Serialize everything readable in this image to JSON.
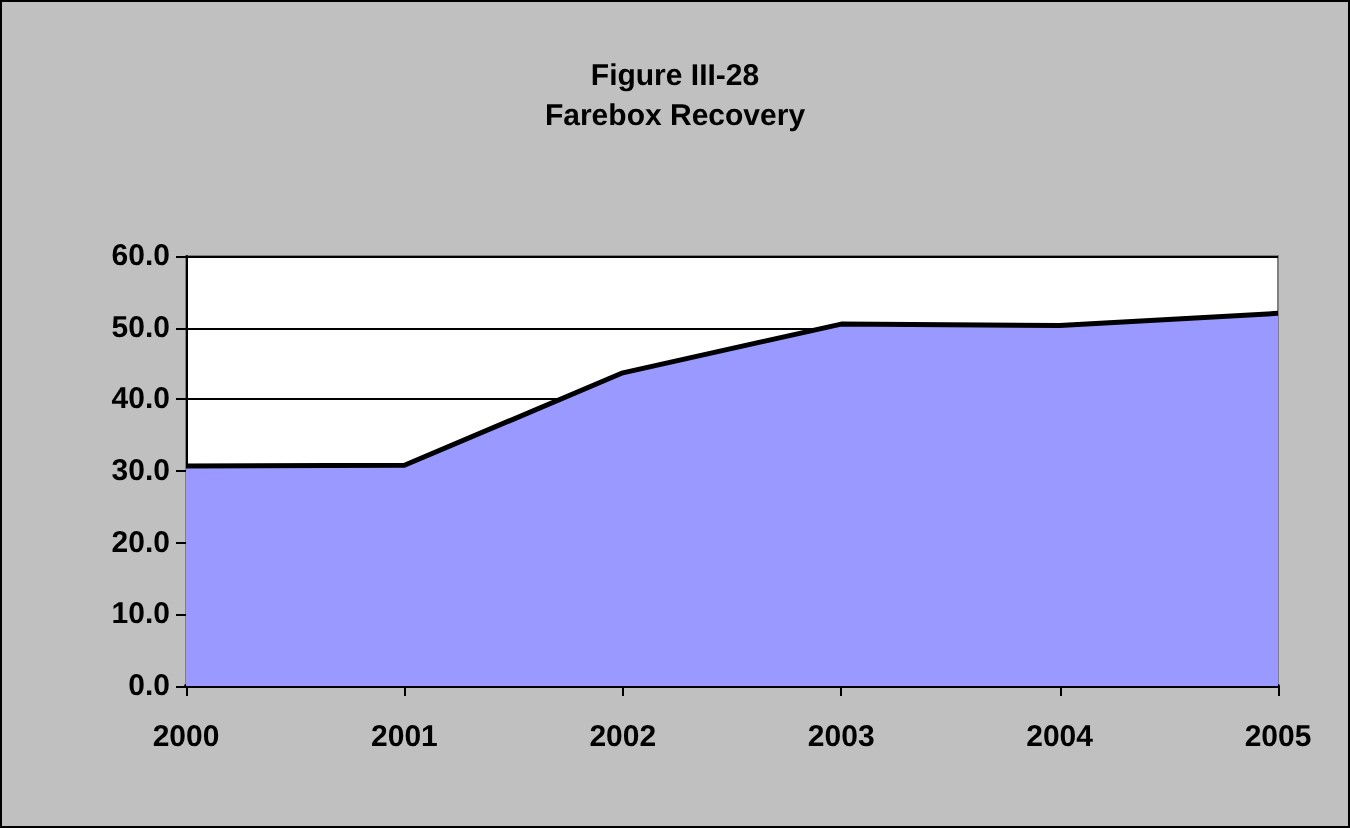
{
  "chart_data": {
    "type": "area",
    "title": "Figure III-28\nFarebox Recovery",
    "categories": [
      "2000",
      "2001",
      "2002",
      "2003",
      "2004",
      "2005"
    ],
    "series": [
      {
        "color": "#9999ff",
        "values": [
          30.7,
          30.8,
          43.7,
          50.5,
          50.3,
          52.0
        ]
      }
    ],
    "ylim": [
      0,
      60
    ],
    "yticks": [
      {
        "value": 0,
        "label": "0.0"
      },
      {
        "value": 10,
        "label": "10.0"
      },
      {
        "value": 20,
        "label": "20.0"
      },
      {
        "value": 30,
        "label": "30.0"
      },
      {
        "value": 40,
        "label": "40.0"
      },
      {
        "value": 50,
        "label": "50.0"
      },
      {
        "value": 60,
        "label": "60.0"
      }
    ],
    "grid": "y"
  }
}
